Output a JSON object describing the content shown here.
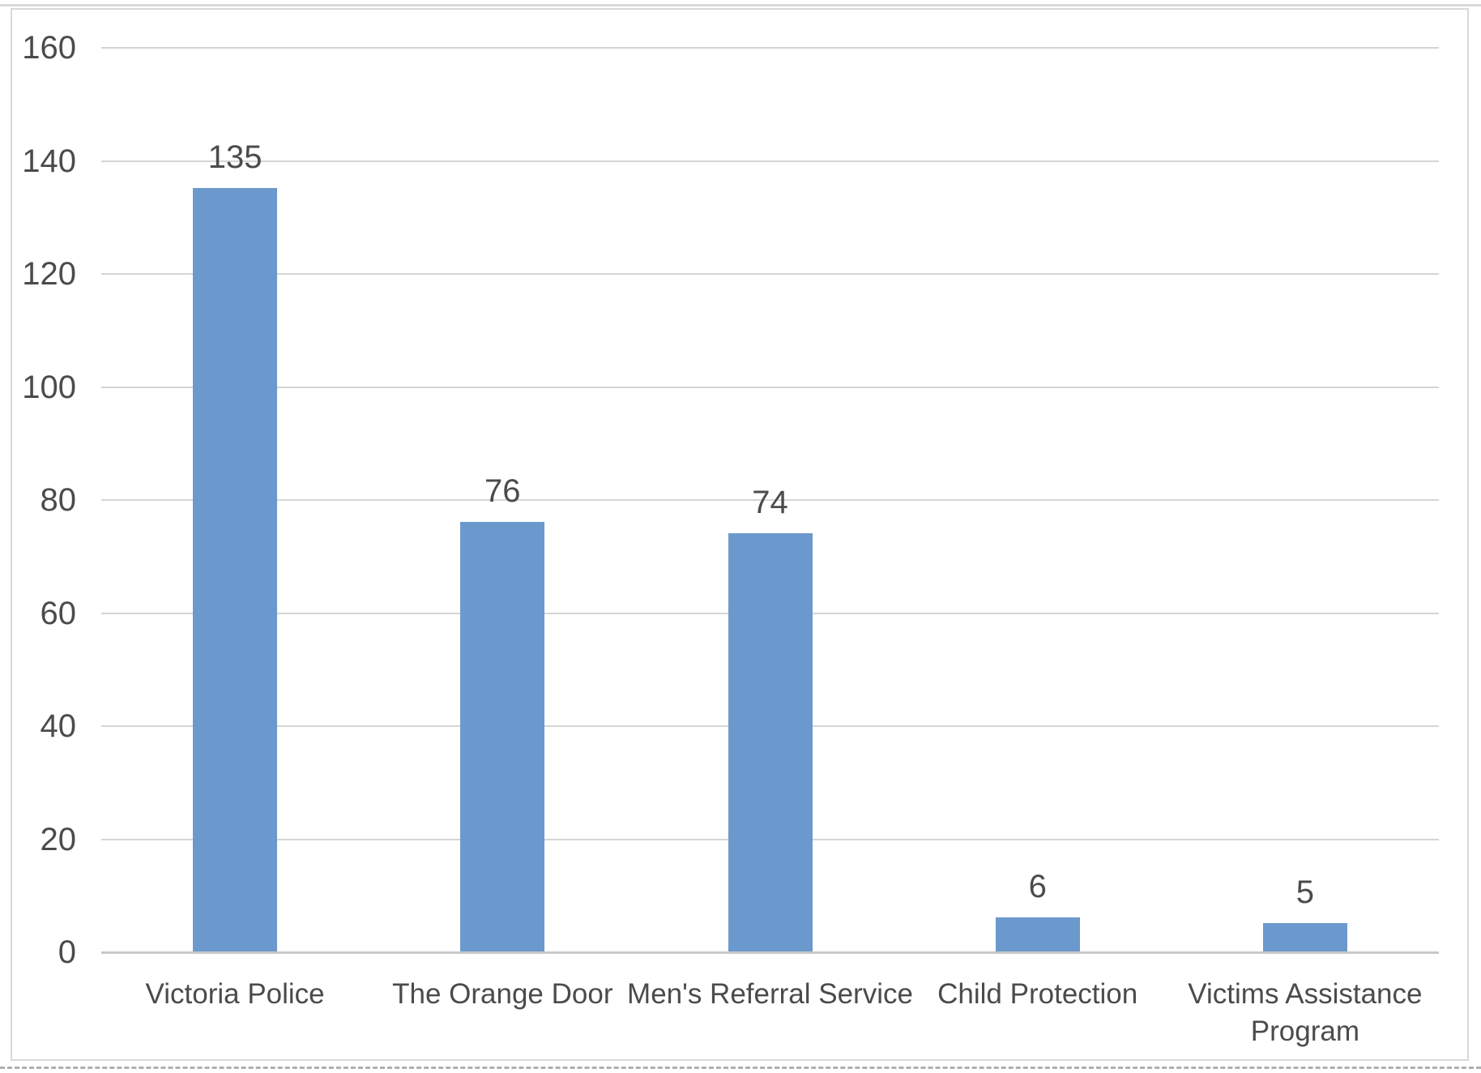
{
  "chart_data": {
    "type": "bar",
    "title": "",
    "xlabel": "",
    "ylabel": "",
    "categories": [
      "Victoria Police",
      "The Orange Door",
      "Men's Referral Service",
      "Child Protection",
      "Victims Assistance Program"
    ],
    "values": [
      135,
      76,
      74,
      6,
      5
    ],
    "data_labels": [
      "135",
      "76",
      "74",
      "6",
      "5"
    ],
    "yticks": [
      "0",
      "20",
      "40",
      "60",
      "80",
      "100",
      "120",
      "140",
      "160"
    ],
    "ytick_values": [
      0,
      20,
      40,
      60,
      80,
      100,
      120,
      140,
      160
    ],
    "ylim": [
      0,
      160
    ],
    "grid": true,
    "legend": false,
    "data_label_position": "outside-end",
    "colors": {
      "bar": "#6C99CD",
      "text": "#4B4B4B",
      "gridline": "#D5D5D5",
      "axis_line": "#C8C8C8",
      "frame_border": "#D9D9D9",
      "top_rule": "#DADADA",
      "bottom_dashed_rule": "#AFAFAF",
      "background": "#FFFFFF"
    }
  }
}
